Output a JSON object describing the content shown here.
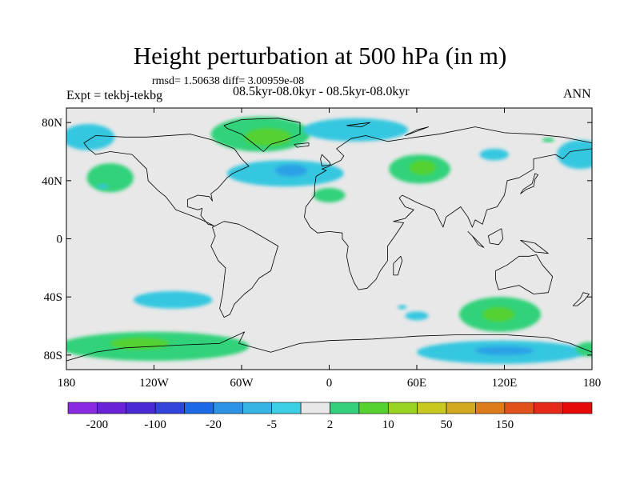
{
  "title": "Height perturbation at 500 hPa (in m)",
  "stats": "rmsd= 1.50638 diff= 3.00959e-08",
  "expt": "Expt = tekbj-tekbg",
  "run": "08.5kyr-08.0kyr - 08.5kyr-08.0kyr",
  "season": "ANN",
  "map": {
    "projection": "cylindrical-equidistant",
    "lon_range": [
      -180,
      180
    ],
    "lat_range": [
      -90,
      90
    ],
    "background_color": "#e8e8e8",
    "coastline_color": "#000000",
    "lat_ticks": [
      {
        "value": 80,
        "label": "80N"
      },
      {
        "value": 40,
        "label": "40N"
      },
      {
        "value": 0,
        "label": "0"
      },
      {
        "value": -40,
        "label": "40S"
      },
      {
        "value": -80,
        "label": "80S"
      }
    ],
    "lon_ticks": [
      {
        "value": -180,
        "label": "180"
      },
      {
        "value": -120,
        "label": "120W"
      },
      {
        "value": -60,
        "label": "60W"
      },
      {
        "value": 0,
        "label": "0"
      },
      {
        "value": 60,
        "label": "60E"
      },
      {
        "value": 120,
        "label": "120E"
      },
      {
        "value": 180,
        "label": "180"
      }
    ]
  },
  "anomalies": [
    {
      "name": "greenland-positive",
      "lon": -47,
      "lat": 72,
      "rlon": 34,
      "rlat": 12,
      "color": "#33d27a"
    },
    {
      "name": "greenland-positive-core",
      "lon": -42,
      "lat": 70,
      "rlon": 16,
      "rlat": 6,
      "color": "#55d230"
    },
    {
      "name": "north-atlantic-negative",
      "lon": -30,
      "lat": 45,
      "rlon": 40,
      "rlat": 9,
      "color": "#35c7e0"
    },
    {
      "name": "north-atlantic-negative-core",
      "lon": -26,
      "lat": 47,
      "rlon": 11,
      "rlat": 4,
      "color": "#2aa0e6"
    },
    {
      "name": "arctic-negative",
      "lon": 18,
      "lat": 75,
      "rlon": 36,
      "rlat": 8,
      "color": "#35c7e0"
    },
    {
      "name": "north-pacific-negative",
      "lon": -165,
      "lat": 70,
      "rlon": 18,
      "rlat": 9,
      "color": "#35c7e0"
    },
    {
      "name": "pacific-positive",
      "lon": -150,
      "lat": 42,
      "rlon": 16,
      "rlat": 10,
      "color": "#33d27a"
    },
    {
      "name": "asia-positive",
      "lon": 62,
      "lat": 48,
      "rlon": 21,
      "rlat": 10,
      "color": "#33d27a"
    },
    {
      "name": "asia-positive-core",
      "lon": 64,
      "lat": 49,
      "rlon": 9,
      "rlat": 5,
      "color": "#55d230"
    },
    {
      "name": "north-africa-positive",
      "lon": 0,
      "lat": 30,
      "rlon": 11,
      "rlat": 5,
      "color": "#33d27a"
    },
    {
      "name": "east-asia-negative",
      "lon": 113,
      "lat": 58,
      "rlon": 10,
      "rlat": 4,
      "color": "#35c7e0"
    },
    {
      "name": "kamchatka-negative",
      "lon": 172,
      "lat": 58,
      "rlon": 16,
      "rlat": 10,
      "color": "#35c7e0"
    },
    {
      "name": "south-pacific-negative",
      "lon": -107,
      "lat": -42,
      "rlon": 27,
      "rlat": 6,
      "color": "#35c7e0"
    },
    {
      "name": "southern-ocean-positive-west",
      "lon": -120,
      "lat": -74,
      "rlon": 65,
      "rlat": 10,
      "color": "#33d27a"
    },
    {
      "name": "southern-ocean-positive-west-core",
      "lon": -130,
      "lat": -72,
      "rlon": 20,
      "rlat": 4,
      "color": "#55d230"
    },
    {
      "name": "indian-ocean-positive",
      "lon": 117,
      "lat": -52,
      "rlon": 28,
      "rlat": 12,
      "color": "#33d27a"
    },
    {
      "name": "indian-ocean-positive-core",
      "lon": 116,
      "lat": -52,
      "rlon": 11,
      "rlat": 5,
      "color": "#55d230"
    },
    {
      "name": "south-atlantic-negative",
      "lon": 60,
      "lat": -53,
      "rlon": 8,
      "rlat": 3,
      "color": "#35c7e0"
    },
    {
      "name": "southern-ocean-negative-east",
      "lon": 118,
      "lat": -78,
      "rlon": 58,
      "rlat": 8,
      "color": "#35c7e0"
    },
    {
      "name": "southern-ocean-negative-east-core",
      "lon": 120,
      "lat": -77,
      "rlon": 20,
      "rlat": 3,
      "color": "#2aa0e6"
    },
    {
      "name": "dateline-positive-south",
      "lon": 178,
      "lat": -76,
      "rlon": 9,
      "rlat": 5,
      "color": "#33d27a"
    },
    {
      "name": "pacific-small-negative",
      "lon": -155,
      "lat": 36,
      "rlon": 4,
      "rlat": 1.5,
      "color": "#35c7e0"
    },
    {
      "name": "pacific-small-positive",
      "lon": 150,
      "lat": 68,
      "rlon": 4,
      "rlat": 1.5,
      "color": "#33d27a"
    },
    {
      "name": "south-pacific-small-negative",
      "lon": 50,
      "lat": -47,
      "rlon": 3,
      "rlat": 1.5,
      "color": "#35c7e0"
    }
  ],
  "landmasses": [
    {
      "name": "north-america",
      "points": [
        [
          -168,
          66
        ],
        [
          -160,
          71
        ],
        [
          -140,
          70
        ],
        [
          -125,
          70
        ],
        [
          -95,
          72
        ],
        [
          -80,
          68
        ],
        [
          -65,
          62
        ],
        [
          -60,
          55
        ],
        [
          -55,
          50
        ],
        [
          -66,
          45
        ],
        [
          -70,
          42
        ],
        [
          -76,
          35
        ],
        [
          -81,
          31
        ],
        [
          -80,
          26
        ],
        [
          -82,
          29
        ],
        [
          -90,
          30
        ],
        [
          -97,
          27
        ],
        [
          -97,
          22
        ],
        [
          -90,
          20
        ],
        [
          -87,
          21
        ],
        [
          -88,
          16
        ],
        [
          -83,
          10
        ],
        [
          -79,
          9
        ],
        [
          -85,
          12
        ],
        [
          -92,
          15
        ],
        [
          -105,
          20
        ],
        [
          -112,
          29
        ],
        [
          -117,
          33
        ],
        [
          -124,
          40
        ],
        [
          -125,
          48
        ],
        [
          -135,
          58
        ],
        [
          -150,
          60
        ],
        [
          -160,
          58
        ],
        [
          -165,
          62
        ]
      ]
    },
    {
      "name": "greenland",
      "points": [
        [
          -72,
          78
        ],
        [
          -60,
          82
        ],
        [
          -35,
          83
        ],
        [
          -20,
          80
        ],
        [
          -20,
          72
        ],
        [
          -30,
          68
        ],
        [
          -40,
          65
        ],
        [
          -45,
          60
        ],
        [
          -50,
          64
        ],
        [
          -55,
          68
        ],
        [
          -60,
          72
        ],
        [
          -70,
          76
        ]
      ]
    },
    {
      "name": "south-america",
      "points": [
        [
          -80,
          8
        ],
        [
          -72,
          12
        ],
        [
          -62,
          10
        ],
        [
          -52,
          5
        ],
        [
          -35,
          -5
        ],
        [
          -38,
          -15
        ],
        [
          -40,
          -22
        ],
        [
          -48,
          -27
        ],
        [
          -53,
          -34
        ],
        [
          -58,
          -38
        ],
        [
          -65,
          -45
        ],
        [
          -68,
          -52
        ],
        [
          -72,
          -54
        ],
        [
          -75,
          -48
        ],
        [
          -73,
          -38
        ],
        [
          -71,
          -20
        ],
        [
          -76,
          -15
        ],
        [
          -81,
          -5
        ],
        [
          -78,
          2
        ]
      ]
    },
    {
      "name": "eurasia-africa",
      "points": [
        [
          -10,
          36
        ],
        [
          -9,
          43
        ],
        [
          -2,
          47
        ],
        [
          -5,
          48
        ],
        [
          0,
          50
        ],
        [
          8,
          54
        ],
        [
          10,
          57
        ],
        [
          5,
          62
        ],
        [
          15,
          69
        ],
        [
          25,
          71
        ],
        [
          40,
          67
        ],
        [
          60,
          70
        ],
        [
          75,
          72
        ],
        [
          100,
          77
        ],
        [
          120,
          73
        ],
        [
          140,
          72
        ],
        [
          160,
          70
        ],
        [
          180,
          66
        ],
        [
          180,
          62
        ],
        [
          165,
          60
        ],
        [
          160,
          55
        ],
        [
          155,
          58
        ],
        [
          140,
          55
        ],
        [
          140,
          48
        ],
        [
          130,
          42
        ],
        [
          122,
          40
        ],
        [
          120,
          30
        ],
        [
          115,
          22
        ],
        [
          108,
          20
        ],
        [
          105,
          10
        ],
        [
          100,
          13
        ],
        [
          98,
          8
        ],
        [
          95,
          15
        ],
        [
          90,
          22
        ],
        [
          80,
          15
        ],
        [
          78,
          8
        ],
        [
          72,
          20
        ],
        [
          60,
          25
        ],
        [
          56,
          27
        ],
        [
          50,
          30
        ],
        [
          48,
          28
        ],
        [
          52,
          22
        ],
        [
          58,
          20
        ],
        [
          52,
          14
        ],
        [
          44,
          12
        ],
        [
          51,
          11
        ],
        [
          45,
          2
        ],
        [
          40,
          -5
        ],
        [
          40,
          -15
        ],
        [
          35,
          -22
        ],
        [
          32,
          -28
        ],
        [
          26,
          -34
        ],
        [
          20,
          -35
        ],
        [
          17,
          -30
        ],
        [
          14,
          -22
        ],
        [
          12,
          -12
        ],
        [
          13,
          -5
        ],
        [
          9,
          0
        ],
        [
          9,
          4
        ],
        [
          0,
          5
        ],
        [
          -8,
          4
        ],
        [
          -13,
          8
        ],
        [
          -17,
          15
        ],
        [
          -16,
          22
        ],
        [
          -10,
          30
        ]
      ]
    },
    {
      "name": "australia",
      "points": [
        [
          114,
          -22
        ],
        [
          122,
          -18
        ],
        [
          130,
          -12
        ],
        [
          137,
          -12
        ],
        [
          142,
          -11
        ],
        [
          146,
          -18
        ],
        [
          153,
          -26
        ],
        [
          150,
          -37
        ],
        [
          140,
          -38
        ],
        [
          135,
          -35
        ],
        [
          130,
          -32
        ],
        [
          116,
          -35
        ],
        [
          114,
          -28
        ]
      ]
    },
    {
      "name": "antarctica",
      "points": [
        [
          -180,
          -84
        ],
        [
          -160,
          -78
        ],
        [
          -140,
          -75
        ],
        [
          -100,
          -73
        ],
        [
          -75,
          -72
        ],
        [
          -60,
          -65
        ],
        [
          -58,
          -64
        ],
        [
          -62,
          -72
        ],
        [
          -40,
          -78
        ],
        [
          -20,
          -72
        ],
        [
          0,
          -70
        ],
        [
          30,
          -69
        ],
        [
          60,
          -67
        ],
        [
          90,
          -66
        ],
        [
          120,
          -66
        ],
        [
          150,
          -68
        ],
        [
          165,
          -72
        ],
        [
          180,
          -78
        ],
        [
          180,
          -90
        ],
        [
          -180,
          -90
        ]
      ]
    },
    {
      "name": "britain",
      "points": [
        [
          -5,
          50
        ],
        [
          1,
          51
        ],
        [
          0,
          53
        ],
        [
          -3,
          56
        ],
        [
          -5,
          58
        ],
        [
          -6,
          55
        ]
      ]
    },
    {
      "name": "madagascar",
      "points": [
        [
          44,
          -25
        ],
        [
          47,
          -25
        ],
        [
          50,
          -15
        ],
        [
          49,
          -12
        ],
        [
          44,
          -17
        ]
      ]
    },
    {
      "name": "japan",
      "points": [
        [
          131,
          31
        ],
        [
          135,
          34
        ],
        [
          140,
          36
        ],
        [
          141,
          41
        ],
        [
          143,
          44
        ],
        [
          141,
          45
        ],
        [
          139,
          38
        ],
        [
          133,
          34
        ]
      ]
    },
    {
      "name": "new-zealand",
      "points": [
        [
          167,
          -46
        ],
        [
          172,
          -41
        ],
        [
          174,
          -37
        ],
        [
          178,
          -38
        ],
        [
          175,
          -42
        ],
        [
          170,
          -46
        ]
      ]
    },
    {
      "name": "borneo",
      "points": [
        [
          109,
          2
        ],
        [
          118,
          7
        ],
        [
          119,
          0
        ],
        [
          116,
          -4
        ],
        [
          110,
          -3
        ]
      ]
    },
    {
      "name": "sumatra",
      "points": [
        [
          95,
          5
        ],
        [
          106,
          -6
        ],
        [
          102,
          -4
        ],
        [
          98,
          2
        ]
      ]
    },
    {
      "name": "new-guinea",
      "points": [
        [
          131,
          -1
        ],
        [
          141,
          -3
        ],
        [
          150,
          -10
        ],
        [
          141,
          -9
        ],
        [
          135,
          -4
        ]
      ]
    },
    {
      "name": "iceland",
      "points": [
        [
          -24,
          65
        ],
        [
          -14,
          66
        ],
        [
          -14,
          64
        ],
        [
          -22,
          63
        ]
      ]
    },
    {
      "name": "svalbard",
      "points": [
        [
          12,
          78
        ],
        [
          28,
          80
        ],
        [
          22,
          77
        ]
      ]
    },
    {
      "name": "novaya-zemlya",
      "points": [
        [
          52,
          71
        ],
        [
          68,
          77
        ],
        [
          60,
          75
        ]
      ]
    }
  ],
  "colorbar": {
    "colors": [
      "#8a2be2",
      "#6a22d8",
      "#4b2ad6",
      "#3344dd",
      "#1a6ae6",
      "#2a93e6",
      "#35b5e6",
      "#3ccfe6",
      "#e8e8e8",
      "#33d27a",
      "#55d230",
      "#9ad423",
      "#c8c81e",
      "#d2a91e",
      "#de7b1a",
      "#e0521a",
      "#e62a1a",
      "#e60a0a"
    ],
    "labels": [
      {
        "boundary": 1,
        "text": "-200"
      },
      {
        "boundary": 3,
        "text": "-100"
      },
      {
        "boundary": 5,
        "text": "-20"
      },
      {
        "boundary": 7,
        "text": "-5"
      },
      {
        "boundary": 9,
        "text": "2"
      },
      {
        "boundary": 11,
        "text": "10"
      },
      {
        "boundary": 13,
        "text": "50"
      },
      {
        "boundary": 15,
        "text": "150"
      }
    ]
  }
}
